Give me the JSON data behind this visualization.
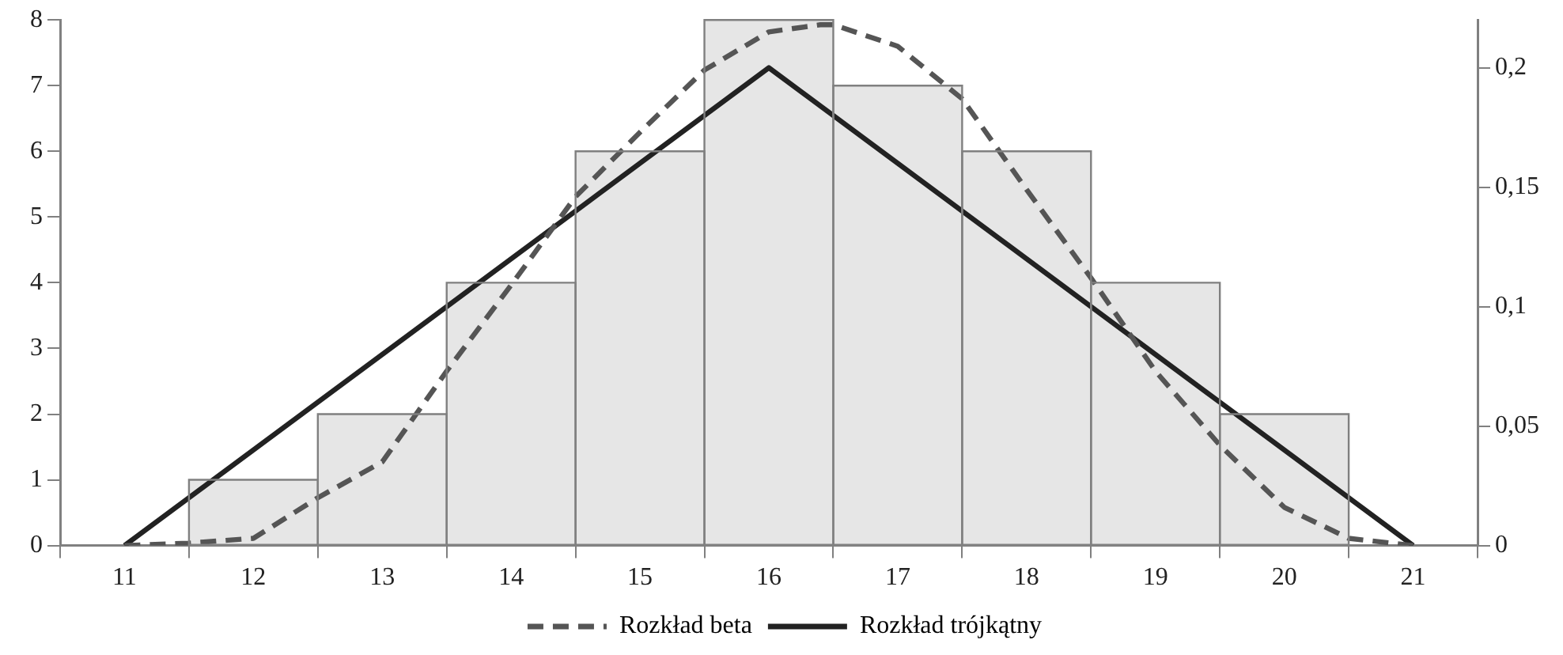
{
  "chart_data": {
    "type": "histogram",
    "legend": "bottom",
    "grid": false,
    "marker": "none",
    "xlim": [
      10.5,
      21.5
    ],
    "xticks": [
      {
        "value": 10.5,
        "label": null
      },
      11,
      {
        "value": 11.5,
        "label": null
      },
      12,
      {
        "value": 12.5,
        "label": null
      },
      13,
      {
        "value": 13.5,
        "label": null
      },
      14,
      {
        "value": 14.5,
        "label": null
      },
      15,
      {
        "value": 15.5,
        "label": null
      },
      16,
      {
        "value": 16.5,
        "label": null
      },
      17,
      {
        "value": 17.5,
        "label": null
      },
      18,
      {
        "value": 18.5,
        "label": null
      },
      19,
      {
        "value": 19.5,
        "label": null
      },
      20,
      {
        "value": 20.5,
        "label": null
      },
      21,
      {
        "value": 21.5,
        "label": null
      }
    ],
    "ylim": [
      0,
      8
    ],
    "yticks": [
      0,
      1,
      2,
      3,
      4,
      5,
      6,
      7,
      8
    ],
    "y2lim": [
      0,
      0.22
    ],
    "y2ticks": [
      0,
      {
        "value": 0.05,
        "label": "0,05"
      },
      {
        "value": 0.1,
        "label": "0,1"
      },
      {
        "value": 0.15,
        "label": "0,15"
      },
      {
        "value": 0.2,
        "label": "0,2"
      }
    ],
    "color": "#e6e6e6",
    "bins": [
      11.5,
      12.5,
      13.5,
      14.5,
      15.5,
      16.5,
      17.5,
      18.5,
      19.5,
      20.5
    ],
    "values": [
      1,
      2,
      4,
      6,
      8,
      7,
      6,
      4,
      2
    ],
    "series": [
      {
        "type": "line",
        "name": "Rozkład beta",
        "color": "#555555",
        "line_style": "dashed",
        "axis": "y2",
        "x": [
          11,
          11.5,
          12,
          12.5,
          13,
          13.5,
          14,
          14.5,
          15,
          15.5,
          16,
          16.4,
          16.5,
          17,
          17.5,
          18,
          18.5,
          19,
          19.5,
          20,
          20.5,
          21
        ],
        "values": [
          0,
          0.001,
          0.003,
          0.02,
          0.035,
          0.073,
          0.109,
          0.146,
          0.173,
          0.199,
          0.215,
          0.218,
          0.218,
          0.209,
          0.187,
          0.149,
          0.112,
          0.073,
          0.042,
          0.016,
          0.003,
          0
        ]
      },
      {
        "type": "line",
        "name": "Rozkład trójkątny",
        "color": "#222222",
        "line_style": "solid",
        "axis": "y2",
        "x": [
          11,
          16,
          21
        ],
        "values": [
          0,
          0.2,
          0
        ]
      }
    ]
  }
}
